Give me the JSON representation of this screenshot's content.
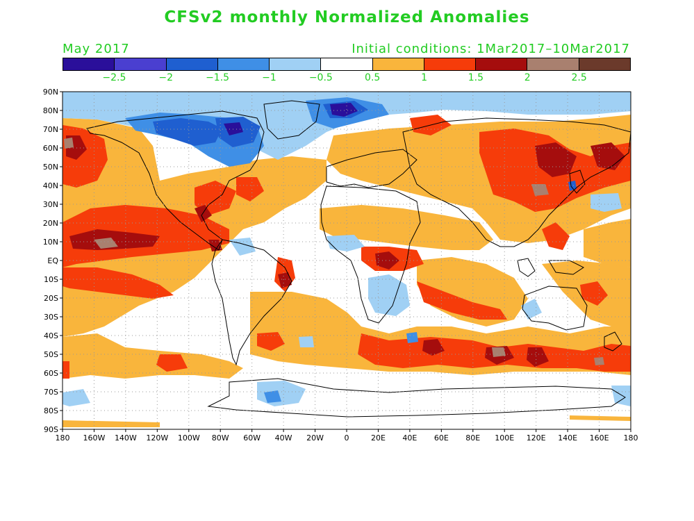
{
  "title": "CFSv2 monthly Normalized Anomalies",
  "month": "May 2017",
  "initial_conditions": "Initial conditions: 1Mar2017–10Mar2017",
  "colorbar": {
    "colors": [
      "#2a0f9a",
      "#4a3fd0",
      "#1f5fd0",
      "#3f8fe6",
      "#a0d0f4",
      "#ffffff",
      "#f9b53c",
      "#f63c0a",
      "#a50d0d",
      "#a9806f",
      "#6b3a2b"
    ],
    "labels": [
      "−2.5",
      "−2",
      "−1.5",
      "−1",
      "−0.5",
      "0.5",
      "1",
      "1.5",
      "2",
      "2.5"
    ]
  },
  "map": {
    "lat_labels": [
      "90N",
      "80N",
      "70N",
      "60N",
      "50N",
      "40N",
      "30N",
      "20N",
      "10N",
      "EQ",
      "10S",
      "20S",
      "30S",
      "40S",
      "50S",
      "60S",
      "70S",
      "80S",
      "90S"
    ],
    "lon_labels": [
      "180",
      "160W",
      "140W",
      "120W",
      "100W",
      "80W",
      "60W",
      "40W",
      "20W",
      "0",
      "20E",
      "40E",
      "60E",
      "80E",
      "100E",
      "120E",
      "140E",
      "160E",
      "180"
    ],
    "gridlines": "dotted",
    "variable": "normalized anomaly"
  }
}
